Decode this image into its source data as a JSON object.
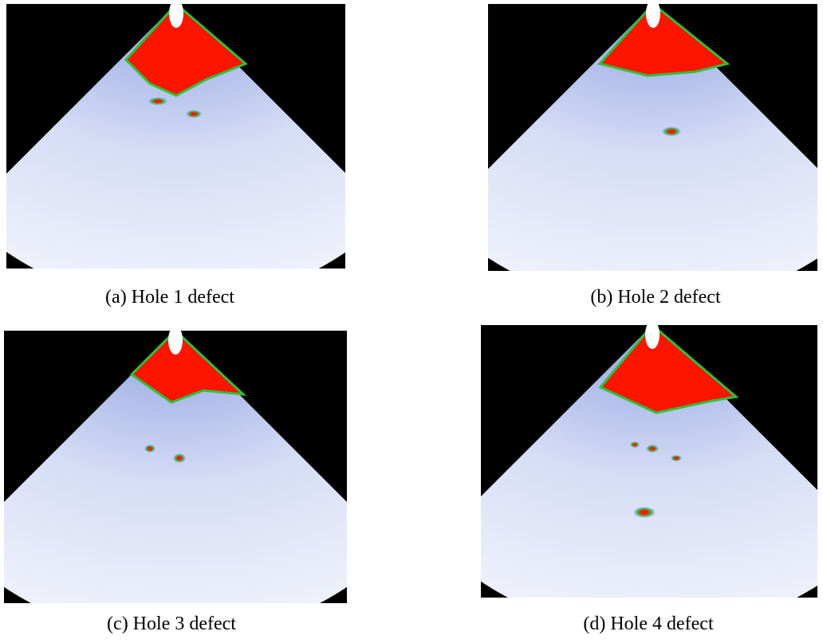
{
  "figure": {
    "panels": [
      {
        "caption": "(a) Hole 1 defect"
      },
      {
        "caption": "(b) Hole 2 defect"
      },
      {
        "caption": "(c) Hole 3 defect"
      },
      {
        "caption": "(d) Hole 4 defect"
      }
    ]
  }
}
